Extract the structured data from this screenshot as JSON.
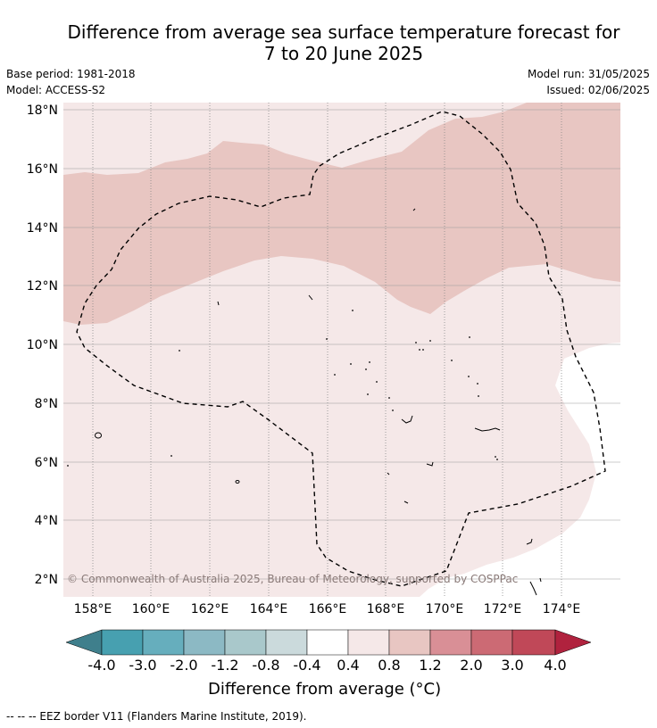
{
  "header": {
    "title_line1": "Difference from average sea surface temperature forecast for",
    "title_line2": "7 to 20 June 2025",
    "base_period": "Base period: 1981-2018",
    "model": "Model: ACCESS-S2",
    "model_run": "Model run: 31/05/2025",
    "issued": "Issued: 02/06/2025"
  },
  "map": {
    "lat_labels": [
      "18°N",
      "16°N",
      "14°N",
      "12°N",
      "10°N",
      "8°N",
      "6°N",
      "4°N",
      "2°N"
    ],
    "lon_labels": [
      "158°E",
      "160°E",
      "162°E",
      "164°E",
      "166°E",
      "168°E",
      "170°E",
      "172°E",
      "174°E"
    ],
    "copyright": "© Commonwealth of Australia 2025, Bureau of Meteorology, supported by COSPPac",
    "colors": {
      "band_0p4_0p8": "#f5e8e8",
      "band_0p8_1p2": "#e8c6c2",
      "outline": "#000000"
    }
  },
  "colorbar": {
    "title": "Difference from average (°C)",
    "tick_labels": [
      "-4.0",
      "-3.0",
      "-2.0",
      "-1.2",
      "-0.8",
      "-0.4",
      "0.4",
      "0.8",
      "1.2",
      "2.0",
      "3.0",
      "4.0"
    ],
    "colors": [
      "#3f7f8c",
      "#47a0b0",
      "#66aebd",
      "#8cb9c4",
      "#a9c8cb",
      "#cbdadc",
      "#ffffff",
      "#f5e8e8",
      "#e8c6c2",
      "#d98f96",
      "#cc6a74",
      "#c04858",
      "#b0223e"
    ]
  },
  "footer": {
    "legend_text": "--  --  -- EEZ border V11 (Flanders Marine Institute, 2019)."
  }
}
